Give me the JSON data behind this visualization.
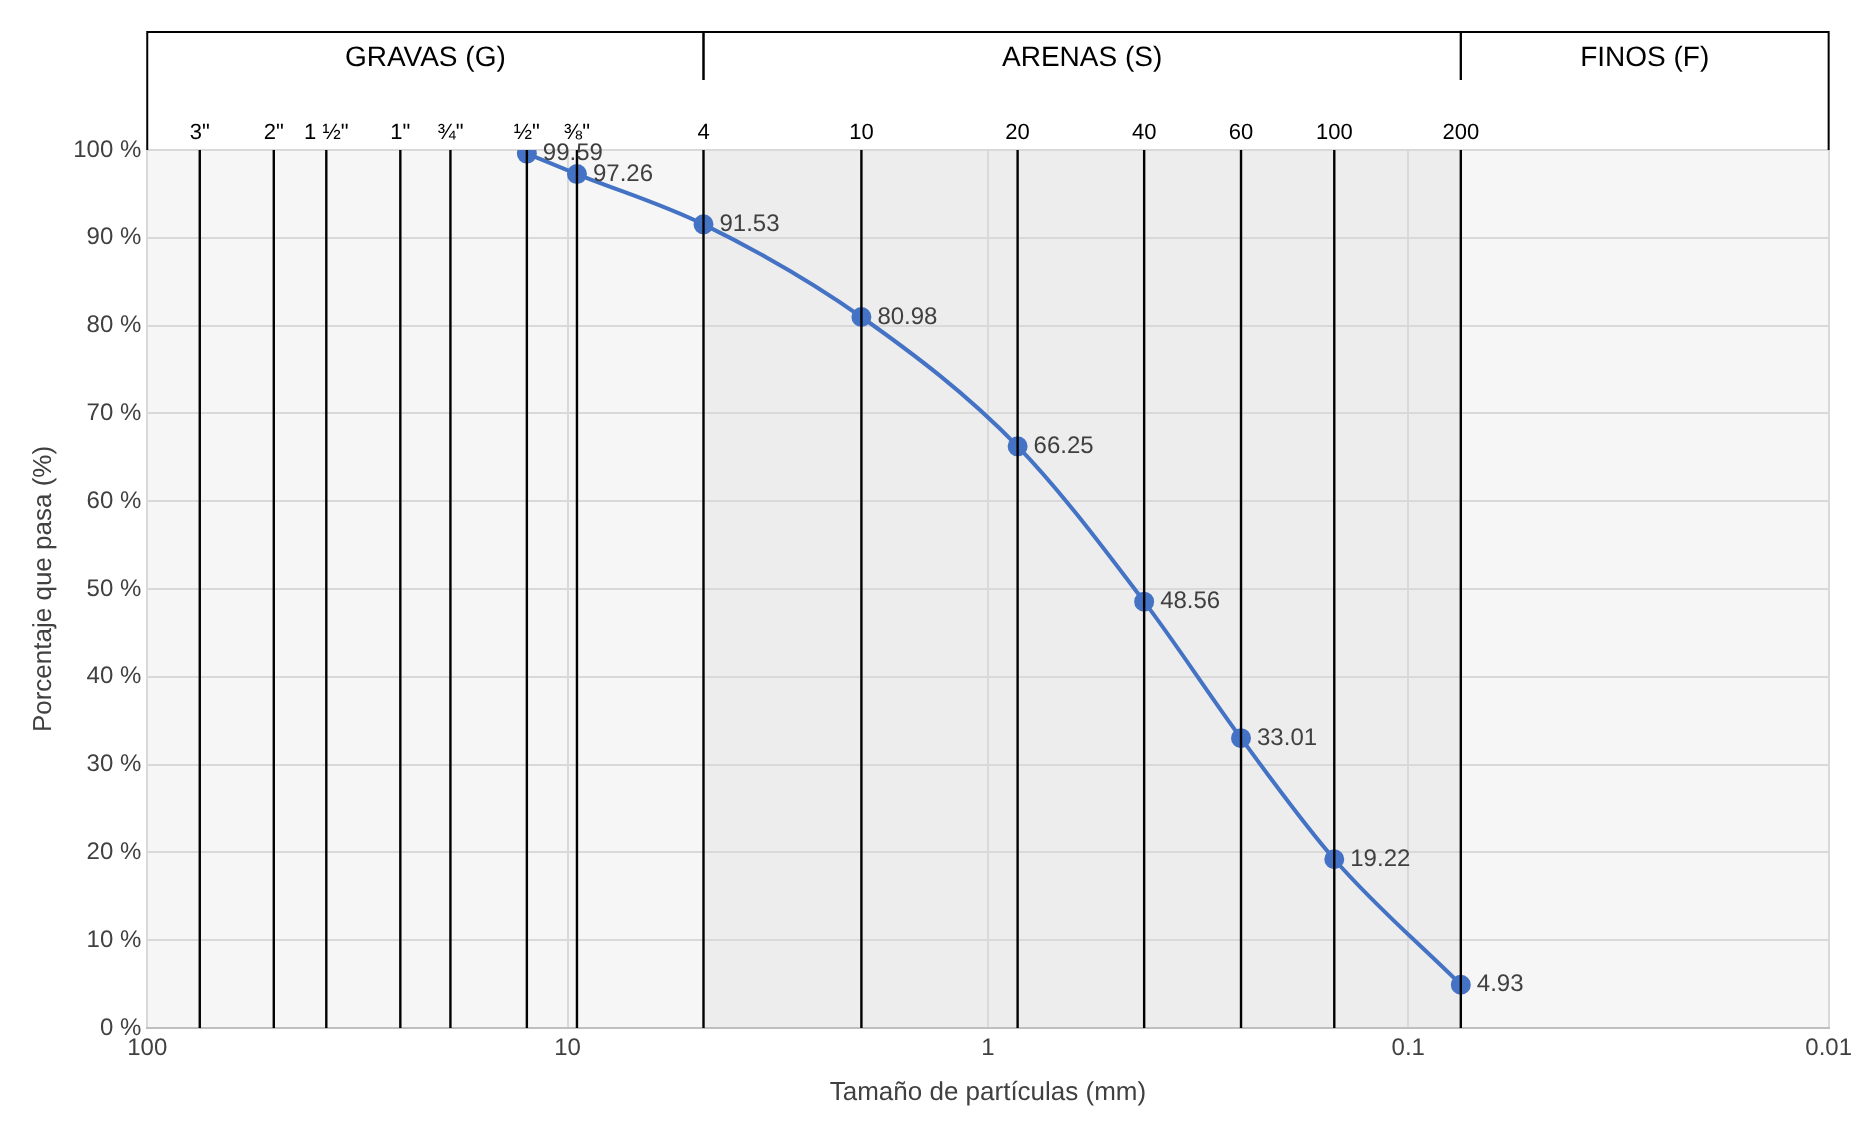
{
  "chart_data": {
    "type": "line",
    "xlabel": "Tamaño de partículas (mm)",
    "ylabel": "Porcentaje que pasa (%)",
    "x": [
      12.5,
      9.5,
      4.75,
      2,
      0.85,
      0.425,
      0.25,
      0.15,
      0.075
    ],
    "series": [
      {
        "color": "#4472c4",
        "values": [
          99.59,
          97.26,
          91.53,
          80.98,
          66.25,
          48.56,
          33.01,
          19.22,
          4.93
        ]
      }
    ],
    "log": "x",
    "xlim": [
      100,
      0.01
    ],
    "xticks": [
      100,
      10,
      1,
      {
        "value": 0.1,
        "label": "0.1"
      },
      {
        "value": 0.01,
        "label": "0.01"
      }
    ],
    "ylim": [
      0,
      100
    ],
    "yticks": [
      {
        "value": 0,
        "label": "0 %"
      },
      {
        "value": 10,
        "label": "10 %"
      },
      {
        "value": 20,
        "label": "20 %"
      },
      {
        "value": 30,
        "label": "30 %"
      },
      {
        "value": 40,
        "label": "40 %"
      },
      {
        "value": 50,
        "label": "50 %"
      },
      {
        "value": 60,
        "label": "60 %"
      },
      {
        "value": 70,
        "label": "70 %"
      },
      {
        "value": 80,
        "label": "80 %"
      },
      {
        "value": 90,
        "label": "90 %"
      },
      {
        "value": 100,
        "label": "100 %"
      }
    ],
    "grid": true,
    "marker": "circle",
    "line_style": "solid",
    "data_labels": true,
    "legend": false,
    "ref_lines": [
      {
        "axis": "x",
        "value": 75
      },
      {
        "axis": "x",
        "value": 50
      },
      {
        "axis": "x",
        "value": 37.5
      },
      {
        "axis": "x",
        "value": 25
      },
      {
        "axis": "x",
        "value": 19
      },
      {
        "axis": "x",
        "value": 12.5
      },
      {
        "axis": "x",
        "value": 9.5
      },
      {
        "axis": "x",
        "value": 4.75
      },
      {
        "axis": "x",
        "value": 2
      },
      {
        "axis": "x",
        "value": 0.85
      },
      {
        "axis": "x",
        "value": 0.425
      },
      {
        "axis": "x",
        "value": 0.25
      },
      {
        "axis": "x",
        "value": 0.15
      },
      {
        "axis": "x",
        "value": 0.075
      }
    ],
    "annotations": [
      {
        "text": "3\"",
        "x": 75,
        "y": 100
      },
      {
        "text": "2\"",
        "x": 50,
        "y": 100
      },
      {
        "text": "1 ½\"",
        "x": 37.5,
        "y": 100
      },
      {
        "text": "1\"",
        "x": 25,
        "y": 100
      },
      {
        "text": "¾\"",
        "x": 19,
        "y": 100
      },
      {
        "text": "½\"",
        "x": 12.5,
        "y": 100
      },
      {
        "text": "⅜\"",
        "x": 9.5,
        "y": 100
      },
      {
        "text": "4",
        "x": 4.75,
        "y": 100
      },
      {
        "text": "10",
        "x": 2,
        "y": 100
      },
      {
        "text": "20",
        "x": 0.85,
        "y": 100
      },
      {
        "text": "40",
        "x": 0.425,
        "y": 100
      },
      {
        "text": "60",
        "x": 0.25,
        "y": 100
      },
      {
        "text": "100",
        "x": 0.15,
        "y": 100
      },
      {
        "text": "200",
        "x": 0.075,
        "y": 100
      }
    ],
    "bands": [
      {
        "axis": "x",
        "from": 100,
        "to": 4.75,
        "label": "GRAVAS (G)",
        "color": "#f6f6f6"
      },
      {
        "axis": "x",
        "from": 4.75,
        "to": 0.075,
        "label": "ARENAS (S)",
        "color": "#ededed"
      },
      {
        "axis": "x",
        "from": 0.075,
        "to": 0.01,
        "label": "FINOS (F)",
        "color": "#f6f6f6"
      }
    ]
  }
}
